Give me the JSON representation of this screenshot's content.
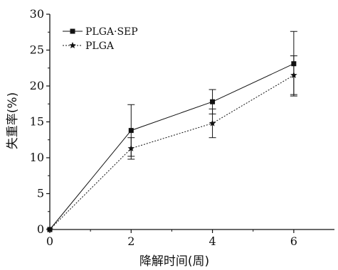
{
  "chart_data": {
    "type": "line",
    "xlabel": "降解时间(周)",
    "ylabel": "失重率(%)",
    "xlim": [
      0,
      7
    ],
    "ylim": [
      0,
      30
    ],
    "x_ticks": [
      0,
      2,
      4,
      6
    ],
    "y_ticks": [
      0,
      5,
      10,
      15,
      20,
      25,
      30
    ],
    "grid": false,
    "legend_position": "top-left",
    "series": [
      {
        "name": "PLGA·SEP",
        "marker": "square",
        "line_style": "solid",
        "color": "#111111",
        "x": [
          0,
          2,
          4,
          6
        ],
        "y": [
          0,
          13.8,
          17.8,
          23.1
        ],
        "error": [
          0,
          3.6,
          1.7,
          4.5
        ]
      },
      {
        "name": "PLGA",
        "marker": "star",
        "line_style": "dotted",
        "color": "#111111",
        "x": [
          0,
          2,
          4,
          6
        ],
        "y": [
          0,
          11.3,
          14.8,
          21.5
        ],
        "error": [
          0,
          1.5,
          2.0,
          2.7
        ]
      }
    ]
  }
}
